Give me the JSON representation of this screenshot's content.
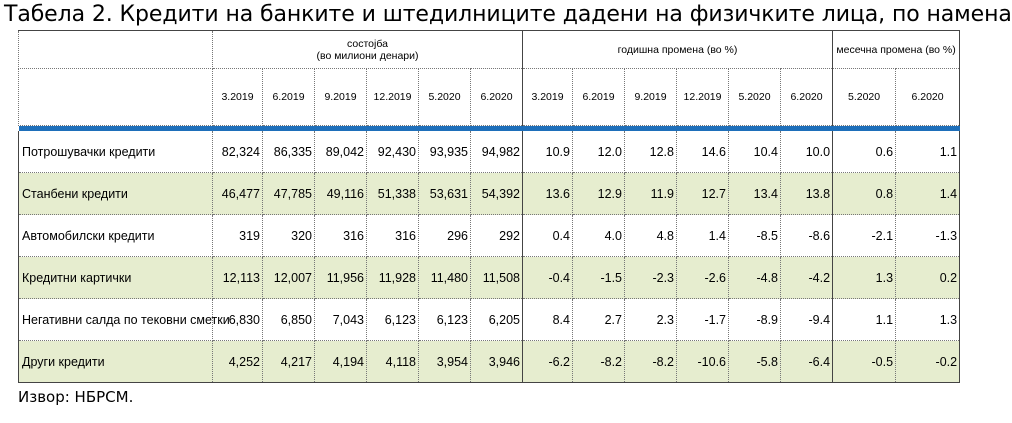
{
  "title": "Табела 2. Кредити на банките и штедилниците дадени на физичките лица, по намена",
  "source": "Извор: НБРСМ.",
  "table": {
    "groups": {
      "stock_line1": "состојба",
      "stock_line2": "(во милиони денари)",
      "annual": "годишна промена (во %)",
      "monthly": "месечна промена (во %)"
    },
    "stock_periods": [
      "3.2019",
      "6.2019",
      "9.2019",
      "12.2019",
      "5.2020",
      "6.2020"
    ],
    "annual_periods": [
      "3.2019",
      "6.2019",
      "9.2019",
      "12.2019",
      "5.2020",
      "6.2020"
    ],
    "monthly_periods": [
      "5.2020",
      "6.2020"
    ],
    "rows": [
      {
        "label": "Потрошувачки кредити",
        "stock": [
          "82,324",
          "86,335",
          "89,042",
          "92,430",
          "93,935",
          "94,982"
        ],
        "annual": [
          "10.9",
          "12.0",
          "12.8",
          "14.6",
          "10.4",
          "10.0"
        ],
        "monthly": [
          "0.6",
          "1.1"
        ]
      },
      {
        "label": "Станбени кредити",
        "stock": [
          "46,477",
          "47,785",
          "49,116",
          "51,338",
          "53,631",
          "54,392"
        ],
        "annual": [
          "13.6",
          "12.9",
          "11.9",
          "12.7",
          "13.4",
          "13.8"
        ],
        "monthly": [
          "0.8",
          "1.4"
        ]
      },
      {
        "label": "Автомобилски кредити",
        "stock": [
          "319",
          "320",
          "316",
          "316",
          "296",
          "292"
        ],
        "annual": [
          "0.4",
          "4.0",
          "4.8",
          "1.4",
          "-8.5",
          "-8.6"
        ],
        "monthly": [
          "-2.1",
          "-1.3"
        ]
      },
      {
        "label": "Кредитни картички",
        "stock": [
          "12,113",
          "12,007",
          "11,956",
          "11,928",
          "11,480",
          "11,508"
        ],
        "annual": [
          "-0.4",
          "-1.5",
          "-2.3",
          "-2.6",
          "-4.8",
          "-4.2"
        ],
        "monthly": [
          "1.3",
          "0.2"
        ]
      },
      {
        "label": "Негативни салда по тековни сметки",
        "stock": [
          "6,830",
          "6,850",
          "7,043",
          "6,123",
          "6,123",
          "6,205"
        ],
        "annual": [
          "8.4",
          "2.7",
          "2.3",
          "-1.7",
          "-8.9",
          "-9.4"
        ],
        "monthly": [
          "1.1",
          "1.3"
        ]
      },
      {
        "label": "Други кредити",
        "stock": [
          "4,252",
          "4,217",
          "4,194",
          "4,118",
          "3,954",
          "3,946"
        ],
        "annual": [
          "-6.2",
          "-8.2",
          "-8.2",
          "-10.6",
          "-5.8",
          "-6.4"
        ],
        "monthly": [
          "-0.5",
          "-0.2"
        ]
      }
    ]
  }
}
